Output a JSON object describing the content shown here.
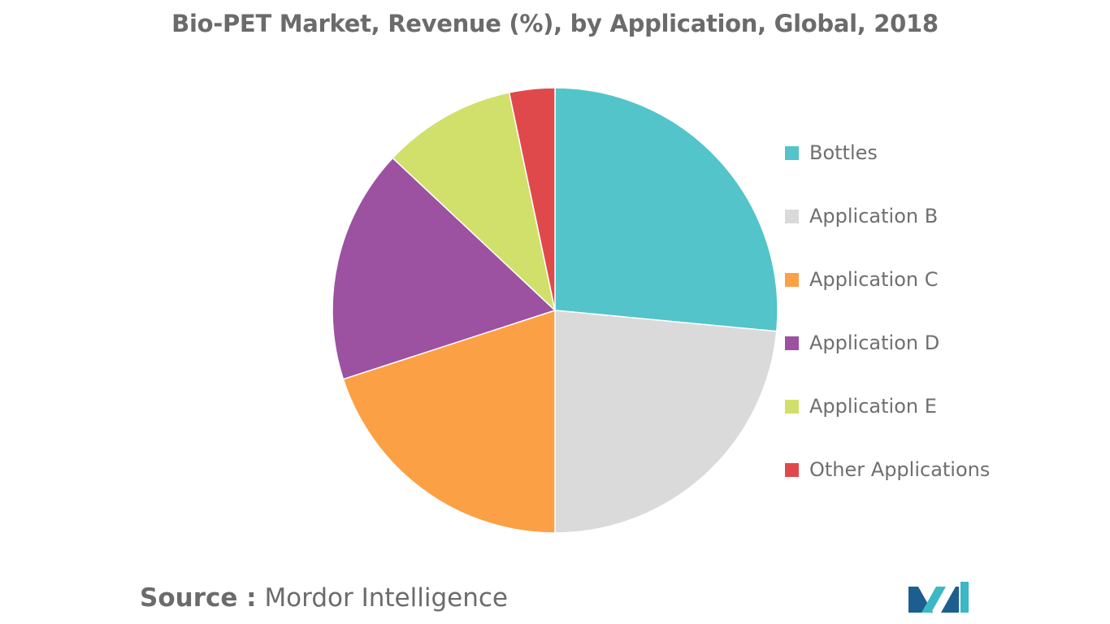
{
  "chart_data": {
    "type": "pie",
    "title": "Bio-PET Market, Revenue (%), by Application, Global, 2018",
    "legend_position": "right",
    "slices": [
      {
        "label": "Bottles",
        "value": 26.5,
        "color": "#52C4CA"
      },
      {
        "label": "Application B",
        "value": 23.5,
        "color": "#DADADA"
      },
      {
        "label": "Application C",
        "value": 20.0,
        "color": "#FCA045"
      },
      {
        "label": "Application D",
        "value": 17.0,
        "color": "#9C51A1"
      },
      {
        "label": "Application E",
        "value": 9.7,
        "color": "#D0E06A"
      },
      {
        "label": "Other Applications",
        "value": 3.3,
        "color": "#E0494B"
      }
    ]
  },
  "source": {
    "label": "Source :",
    "value": "Mordor Intelligence"
  },
  "logo": {
    "icon": "mordor-intelligence-logo-icon",
    "colors": [
      "#1C5E8E",
      "#3BB8C3"
    ]
  }
}
